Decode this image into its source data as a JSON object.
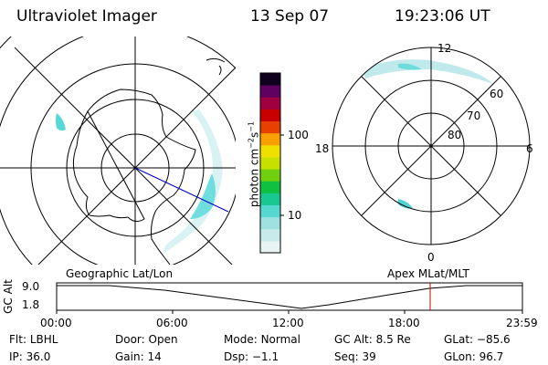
{
  "header": {
    "instrument": "Ultraviolet Imager",
    "date": "13 Sep 07",
    "time": "19:23:06 UT"
  },
  "colorbar": {
    "unit_label": "photon cm",
    "unit_exp1": "−2",
    "unit_mid": "s",
    "unit_exp2": "−1",
    "ticks": [
      "100",
      "10"
    ],
    "colors": [
      "#e8f4f4",
      "#c8eaea",
      "#9fe0e0",
      "#55d8d0",
      "#18c890",
      "#10c040",
      "#70d010",
      "#c8e000",
      "#f0e000",
      "#f8a000",
      "#e84000",
      "#c80000",
      "#a00040",
      "#600060",
      "#100020"
    ]
  },
  "mlt_plot": {
    "labels": {
      "top": "12",
      "bottom": "0",
      "left": "18",
      "right": "6"
    },
    "lat_labels": [
      "60",
      "70",
      "80"
    ]
  },
  "timeline": {
    "left_title": "Geographic Lat/Lon",
    "right_title": "Apex MLat/MLT",
    "y_axis_label": "GC Alt",
    "y_ticks": [
      "9.0",
      "1.8"
    ],
    "x_ticks": [
      "00:00",
      "06:00",
      "12:00",
      "18:00",
      "23:59"
    ]
  },
  "status": {
    "row1": [
      {
        "label": "Flt:",
        "value": "LBHL"
      },
      {
        "label": "Door:",
        "value": "Open"
      },
      {
        "label": "Mode:",
        "value": "Normal"
      },
      {
        "label": "GC Alt:",
        "value": "8.5 Re"
      },
      {
        "label": "GLat:",
        "value": "−85.6"
      }
    ],
    "row2": [
      {
        "label": "IP:",
        "value": "36.0"
      },
      {
        "label": "Gain:",
        "value": "14"
      },
      {
        "label": "Dsp:",
        "value": "−1.1"
      },
      {
        "label": "Seq:",
        "value": "39"
      },
      {
        "label": "GLon:",
        "value": "96.7"
      }
    ]
  }
}
